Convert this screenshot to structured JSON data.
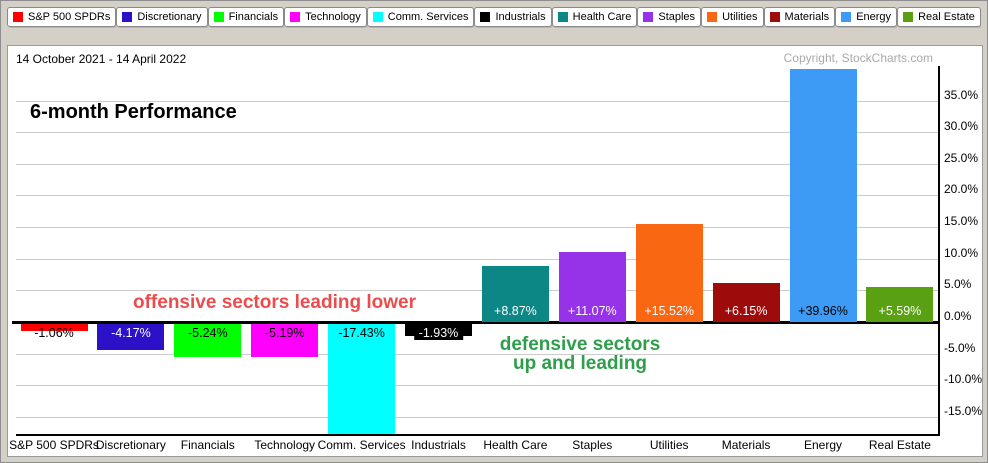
{
  "page": {
    "background": "#D4D0C8"
  },
  "header": {
    "date_range": "14 October 2021 - 14 April 2022",
    "copyright": "Copyright, StockCharts.com"
  },
  "legend": {
    "items": [
      {
        "label": "S&P 500 SPDRs",
        "color": "#FF0000"
      },
      {
        "label": "Discretionary",
        "color": "#2B11C7"
      },
      {
        "label": "Financials",
        "color": "#00FF00"
      },
      {
        "label": "Technology",
        "color": "#FF00FF"
      },
      {
        "label": "Comm. Services",
        "color": "#00FFFF"
      },
      {
        "label": "Industrials",
        "color": "#000000"
      },
      {
        "label": "Health Care",
        "color": "#0D8686"
      },
      {
        "label": "Staples",
        "color": "#9632E8"
      },
      {
        "label": "Utilities",
        "color": "#F96713"
      },
      {
        "label": "Materials",
        "color": "#9E0B0B"
      },
      {
        "label": "Energy",
        "color": "#3D9BF5"
      },
      {
        "label": "Real Estate",
        "color": "#59A013"
      }
    ]
  },
  "annotations": {
    "offensive": {
      "text": "offensive sectors leading lower",
      "color": "#ED4C4C"
    },
    "defensive": {
      "line1": "defensive sectors",
      "line2": "up and leading",
      "color": "#2E9E4B"
    }
  },
  "chart_data": {
    "type": "bar",
    "title": "6-month Performance",
    "categories": [
      "S&P 500 SPDRs",
      "Discretionary",
      "Financials",
      "Technology",
      "Comm. Services",
      "Industrials",
      "Health Care",
      "Staples",
      "Utilities",
      "Materials",
      "Energy",
      "Real Estate"
    ],
    "values": [
      -1.06,
      -4.17,
      -5.24,
      -5.19,
      -17.43,
      -1.93,
      8.87,
      11.07,
      15.52,
      6.15,
      39.96,
      5.59
    ],
    "value_labels": [
      "-1.06%",
      "-4.17%",
      "-5.24%",
      "-5.19%",
      "-17.43%",
      "-1.93%",
      "+8.87%",
      "+11.07%",
      "+15.52%",
      "+6.15%",
      "+39.96%",
      "+5.59%"
    ],
    "bar_colors": [
      "#FF0000",
      "#2B11C7",
      "#00FF00",
      "#FF00FF",
      "#00FFFF",
      "#000000",
      "#0D8686",
      "#9632E8",
      "#F96713",
      "#9E0B0B",
      "#3D9BF5",
      "#59A013"
    ],
    "value_label_colors": [
      "#000000",
      "#FFFFFF",
      "#000000",
      "#000000",
      "#000000",
      "#FFFFFF",
      "#FFFFFF",
      "#FFFFFF",
      "#FFFFFF",
      "#FFFFFF",
      "#000000",
      "#FFFFFF"
    ],
    "xlabel": "",
    "ylabel": "",
    "ylim": [
      -17.5,
      40
    ],
    "ytick_values": [
      35,
      30,
      25,
      20,
      15,
      10,
      5,
      0,
      -5,
      -10,
      -15
    ],
    "ytick_labels": [
      "35.0%",
      "30.0%",
      "25.0%",
      "20.0%",
      "15.0%",
      "10.0%",
      "5.0%",
      "0.0%",
      "-5.0%",
      "-10.0%",
      "-15.0%"
    ],
    "grid": true,
    "grid_color": "#CCCCCC",
    "axis_color": "#000000",
    "legend_position": "top"
  }
}
